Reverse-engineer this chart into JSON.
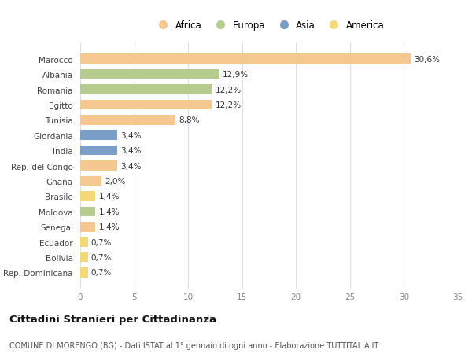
{
  "categories": [
    "Marocco",
    "Albania",
    "Romania",
    "Egitto",
    "Tunisia",
    "Giordania",
    "India",
    "Rep. del Congo",
    "Ghana",
    "Brasile",
    "Moldova",
    "Senegal",
    "Ecuador",
    "Bolivia",
    "Rep. Dominicana"
  ],
  "values": [
    30.6,
    12.9,
    12.2,
    12.2,
    8.8,
    3.4,
    3.4,
    3.4,
    2.0,
    1.4,
    1.4,
    1.4,
    0.7,
    0.7,
    0.7
  ],
  "labels": [
    "30,6%",
    "12,9%",
    "12,2%",
    "12,2%",
    "8,8%",
    "3,4%",
    "3,4%",
    "3,4%",
    "2,0%",
    "1,4%",
    "1,4%",
    "1,4%",
    "0,7%",
    "0,7%",
    "0,7%"
  ],
  "continents": [
    "Africa",
    "Europa",
    "Europa",
    "Africa",
    "Africa",
    "Asia",
    "Asia",
    "Africa",
    "Africa",
    "America",
    "Europa",
    "Africa",
    "America",
    "America",
    "America"
  ],
  "continent_colors": {
    "Africa": "#F5C892",
    "Europa": "#B5CC8E",
    "Asia": "#7B9EC8",
    "America": "#F5D878"
  },
  "xlim": [
    0,
    35
  ],
  "xticks": [
    0,
    5,
    10,
    15,
    20,
    25,
    30,
    35
  ],
  "title": "Cittadini Stranieri per Cittadinanza",
  "subtitle": "COMUNE DI MORENGO (BG) - Dati ISTAT al 1° gennaio di ogni anno - Elaborazione TUTTITALIA.IT",
  "background_color": "#ffffff",
  "grid_color": "#e0e0e0",
  "bar_height": 0.65,
  "label_fontsize": 7.5,
  "tick_fontsize": 7.5,
  "title_fontsize": 9.5,
  "subtitle_fontsize": 7.0,
  "legend_order": [
    "Africa",
    "Europa",
    "Asia",
    "America"
  ]
}
